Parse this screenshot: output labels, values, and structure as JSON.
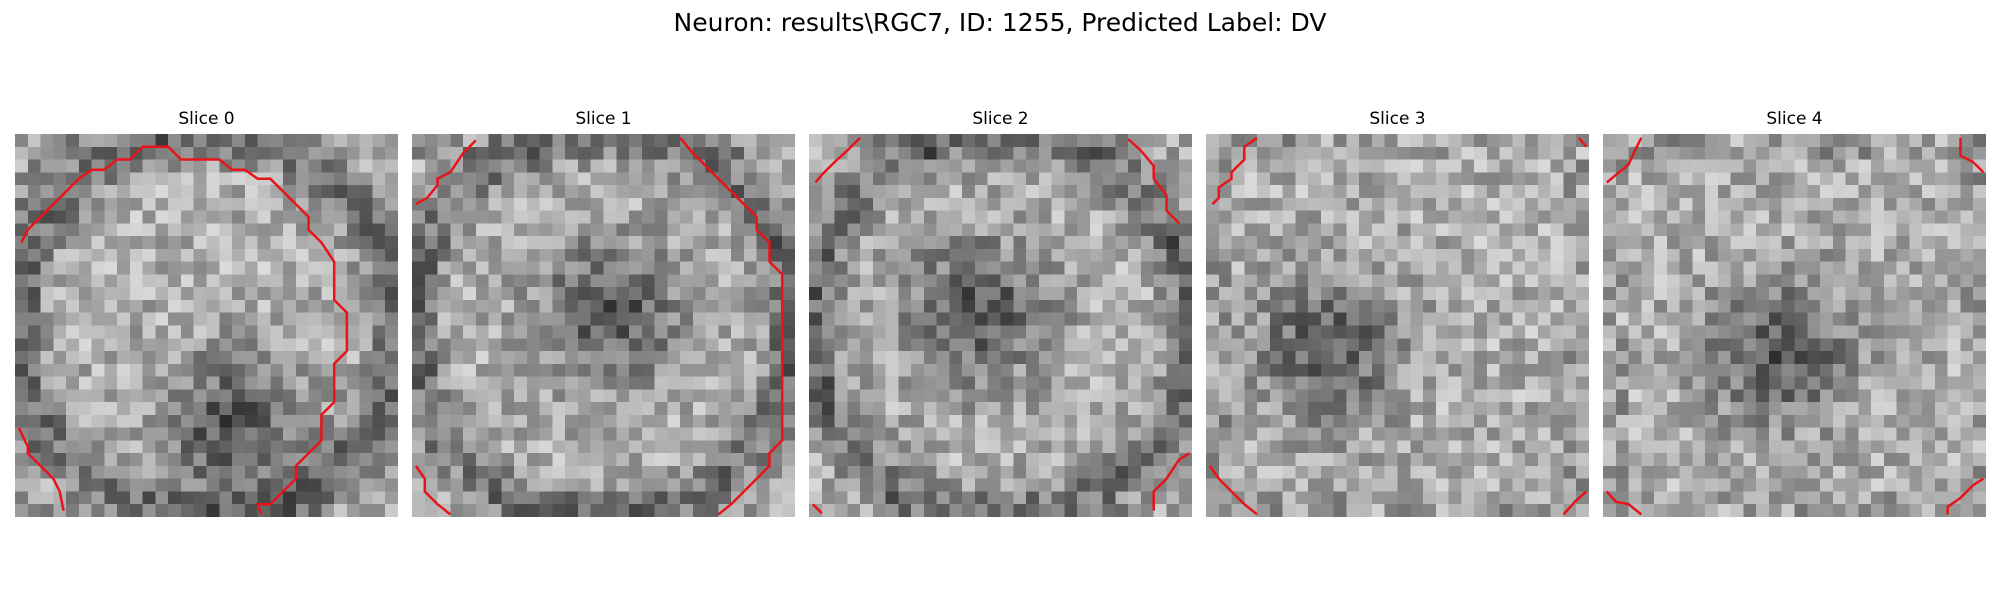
{
  "figure": {
    "title": "Neuron: results\\RGC7, ID: 1255, Predicted Label: DV"
  },
  "slices": [
    {
      "label": "Slice 0",
      "darkspot": [
        0.55,
        0.75
      ],
      "ring": 1
    },
    {
      "label": "Slice 1",
      "darkspot": [
        0.5,
        0.45
      ],
      "ring": 1
    },
    {
      "label": "Slice 2",
      "darkspot": [
        0.42,
        0.45
      ],
      "ring": 1
    },
    {
      "label": "Slice 3",
      "darkspot": [
        0.3,
        0.55
      ],
      "ring": 0
    },
    {
      "label": "Slice 4",
      "darkspot": [
        0.45,
        0.55
      ],
      "ring": 0
    }
  ],
  "colors": {
    "contour": "#e8141a"
  }
}
